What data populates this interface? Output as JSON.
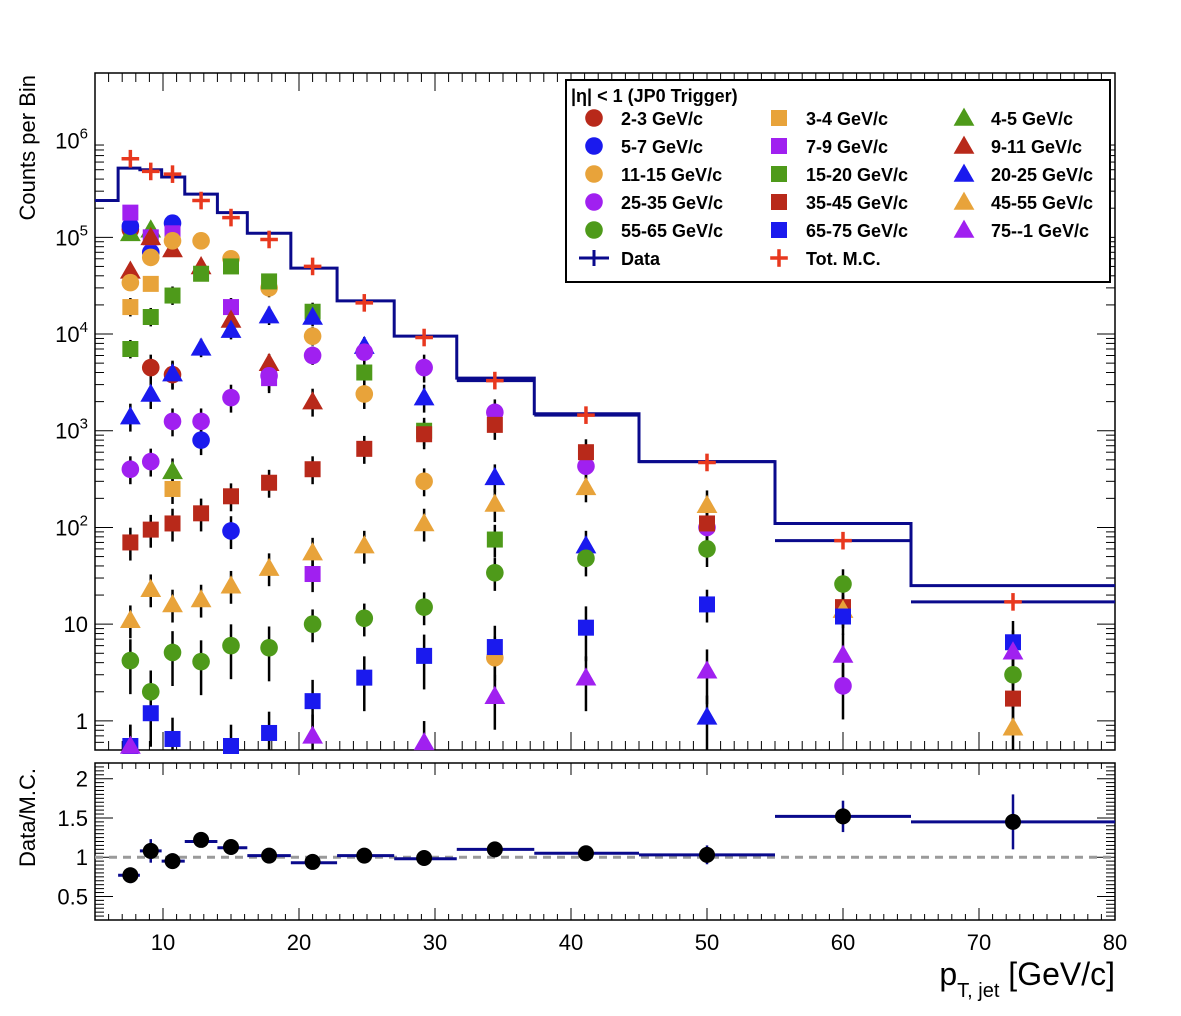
{
  "chart_data": [
    {
      "type": "scatter",
      "panel": "top",
      "ylabel": "Counts per Bin",
      "yscale": "log",
      "ylim": [
        0.5,
        5000000
      ],
      "xlim": [
        5,
        80
      ],
      "y_tick_labels": [
        {
          "value": 1,
          "label": "1"
        },
        {
          "value": 10,
          "label": "10"
        },
        {
          "value": 100,
          "label": "10",
          "exp": "2"
        },
        {
          "value": 1000,
          "label": "10",
          "exp": "3"
        },
        {
          "value": 10000,
          "label": "10",
          "exp": "4"
        },
        {
          "value": 100000,
          "label": "10",
          "exp": "5"
        },
        {
          "value": 1000000,
          "label": "10",
          "exp": "6"
        }
      ],
      "legend": {
        "header": "|η| < 1 (JP0 Trigger)",
        "placement": "top-right"
      },
      "bin_edges": [
        5,
        6.7,
        8.3,
        9.9,
        11.6,
        14,
        16.2,
        19.4,
        22.8,
        27,
        31.6,
        37.3,
        45,
        55,
        65,
        80
      ],
      "data_hist": {
        "name": "Data",
        "color": "#0a0a8c",
        "values": [
          240000,
          520000,
          500000,
          420000,
          280000,
          180000,
          110000,
          48000,
          22000,
          9500,
          3500,
          1500,
          480,
          110,
          25
        ]
      },
      "mc_hist_values": [
        null,
        null,
        null,
        null,
        null,
        null,
        null,
        null,
        null,
        null,
        3300,
        1450,
        480,
        73,
        17
      ],
      "total_mc": {
        "name": "Tot. M.C.",
        "color": "#e8381e",
        "points": [
          [
            7.6,
            650000
          ],
          [
            9.1,
            480000
          ],
          [
            10.7,
            450000
          ],
          [
            12.8,
            240000
          ],
          [
            15.0,
            160000
          ],
          [
            17.8,
            95000
          ],
          [
            21.0,
            50000
          ],
          [
            24.8,
            21000
          ],
          [
            29.2,
            9200
          ],
          [
            34.4,
            3300
          ],
          [
            41.1,
            1450
          ],
          [
            50.0,
            470
          ],
          [
            60.0,
            73
          ],
          [
            72.5,
            17
          ]
        ]
      },
      "series": [
        {
          "name": "2-3 GeV/c",
          "marker": "circle",
          "color": "#b8291a",
          "points": [
            [
              7.6,
              120000
            ],
            [
              9.1,
              4500
            ],
            [
              10.7,
              3800
            ]
          ]
        },
        {
          "name": "3-4 GeV/c",
          "marker": "square",
          "color": "#e8a33a",
          "points": [
            [
              7.6,
              19000
            ],
            [
              9.1,
              33000
            ],
            [
              10.7,
              250
            ]
          ]
        },
        {
          "name": "4-5 GeV/c",
          "marker": "triangle",
          "color": "#4e9a1a",
          "points": [
            [
              7.6,
              110000
            ],
            [
              9.1,
              120000
            ],
            [
              10.7,
              380
            ]
          ]
        },
        {
          "name": "5-7 GeV/c",
          "marker": "circle",
          "color": "#1a1aee",
          "points": [
            [
              7.6,
              130000
            ],
            [
              9.1,
              70000
            ],
            [
              10.7,
              140000
            ],
            [
              12.8,
              800
            ],
            [
              15.0,
              92
            ]
          ]
        },
        {
          "name": "7-9 GeV/c",
          "marker": "square",
          "color": "#a020f0",
          "points": [
            [
              7.6,
              180000
            ],
            [
              9.1,
              100000
            ],
            [
              10.7,
              110000
            ],
            [
              15.0,
              19000
            ],
            [
              17.8,
              3500
            ],
            [
              21.0,
              33
            ]
          ]
        },
        {
          "name": "9-11 GeV/c",
          "marker": "triangle",
          "color": "#b8291a",
          "points": [
            [
              7.6,
              45000
            ],
            [
              9.1,
              100000
            ],
            [
              10.7,
              75000
            ],
            [
              12.8,
              50000
            ],
            [
              15.0,
              14000
            ],
            [
              17.8,
              5000
            ],
            [
              21.0,
              2000
            ]
          ]
        },
        {
          "name": "11-15 GeV/c",
          "marker": "circle",
          "color": "#e8a33a",
          "points": [
            [
              7.6,
              34000
            ],
            [
              9.1,
              62000
            ],
            [
              10.7,
              92000
            ],
            [
              12.8,
              92000
            ],
            [
              15.0,
              60000
            ],
            [
              17.8,
              30000
            ],
            [
              21.0,
              9500
            ],
            [
              24.8,
              2400
            ],
            [
              29.2,
              300
            ],
            [
              34.4,
              4.5
            ]
          ]
        },
        {
          "name": "15-20 GeV/c",
          "marker": "square",
          "color": "#4e9a1a",
          "points": [
            [
              7.6,
              7000
            ],
            [
              9.1,
              15000
            ],
            [
              10.7,
              25000
            ],
            [
              12.8,
              42000
            ],
            [
              15.0,
              50000
            ],
            [
              17.8,
              35000
            ],
            [
              21.0,
              17000
            ],
            [
              24.8,
              4000
            ],
            [
              29.2,
              1000
            ],
            [
              34.4,
              75
            ]
          ]
        },
        {
          "name": "20-25 GeV/c",
          "marker": "triangle",
          "color": "#1a1aee",
          "points": [
            [
              7.6,
              1400
            ],
            [
              9.1,
              2400
            ],
            [
              10.7,
              3900
            ],
            [
              12.8,
              7200
            ],
            [
              15.0,
              11000
            ],
            [
              17.8,
              15500
            ],
            [
              21.0,
              15000
            ],
            [
              24.8,
              7500
            ],
            [
              29.2,
              2200
            ],
            [
              34.4,
              330
            ],
            [
              41.1,
              65
            ],
            [
              50.0,
              1.1
            ]
          ]
        },
        {
          "name": "25-35 GeV/c",
          "marker": "circle",
          "color": "#a020f0",
          "points": [
            [
              7.6,
              400
            ],
            [
              9.1,
              480
            ],
            [
              10.7,
              1250
            ],
            [
              12.8,
              1250
            ],
            [
              15.0,
              2200
            ],
            [
              17.8,
              3700
            ],
            [
              21.0,
              6000
            ],
            [
              24.8,
              6500
            ],
            [
              29.2,
              4500
            ],
            [
              34.4,
              1550
            ],
            [
              41.1,
              430
            ],
            [
              50.0,
              100
            ],
            [
              60.0,
              2.3
            ]
          ]
        },
        {
          "name": "35-45 GeV/c",
          "marker": "square",
          "color": "#b8291a",
          "points": [
            [
              7.6,
              70
            ],
            [
              9.1,
              95
            ],
            [
              10.7,
              110
            ],
            [
              12.8,
              140
            ],
            [
              15.0,
              210
            ],
            [
              17.8,
              290
            ],
            [
              21.0,
              400
            ],
            [
              24.8,
              650
            ],
            [
              29.2,
              920
            ],
            [
              34.4,
              1150
            ],
            [
              41.1,
              600
            ],
            [
              50.0,
              110
            ],
            [
              60.0,
              15
            ],
            [
              72.5,
              1.7
            ]
          ]
        },
        {
          "name": "45-55 GeV/c",
          "marker": "triangle",
          "color": "#e8a33a",
          "points": [
            [
              7.6,
              11
            ],
            [
              9.1,
              23
            ],
            [
              10.7,
              16
            ],
            [
              12.8,
              18
            ],
            [
              15.0,
              25
            ],
            [
              17.8,
              38
            ],
            [
              21.0,
              55
            ],
            [
              24.8,
              65
            ],
            [
              29.2,
              110
            ],
            [
              34.4,
              175
            ],
            [
              41.1,
              260
            ],
            [
              50.0,
              170
            ],
            [
              60.0,
              14
            ],
            [
              72.5,
              0.85
            ]
          ]
        },
        {
          "name": "55-65 GeV/c",
          "marker": "circle",
          "color": "#4e9a1a",
          "points": [
            [
              7.6,
              4.2
            ],
            [
              9.1,
              2
            ],
            [
              10.7,
              5.1
            ],
            [
              12.8,
              4.1
            ],
            [
              15.0,
              6
            ],
            [
              17.8,
              5.7
            ],
            [
              21.0,
              10
            ],
            [
              24.8,
              11.5
            ],
            [
              29.2,
              15
            ],
            [
              34.4,
              34
            ],
            [
              41.1,
              48
            ],
            [
              50.0,
              60
            ],
            [
              60.0,
              26
            ],
            [
              72.5,
              3
            ]
          ]
        },
        {
          "name": "65-75 GeV/c",
          "marker": "square",
          "color": "#1a1aee",
          "points": [
            [
              7.6,
              0.55
            ],
            [
              9.1,
              1.2
            ],
            [
              10.7,
              0.65
            ],
            [
              15.0,
              0.55
            ],
            [
              17.8,
              0.75
            ],
            [
              21.0,
              1.6
            ],
            [
              24.8,
              2.8
            ],
            [
              29.2,
              4.7
            ],
            [
              34.4,
              5.8
            ],
            [
              41.1,
              9.2
            ],
            [
              50.0,
              16
            ],
            [
              60.0,
              12
            ],
            [
              72.5,
              6.5
            ]
          ]
        },
        {
          "name": "75--1 GeV/c",
          "marker": "triangle",
          "color": "#a020f0",
          "points": [
            [
              7.6,
              0.55
            ],
            [
              21.0,
              0.7
            ],
            [
              29.2,
              0.6
            ],
            [
              34.4,
              1.8
            ],
            [
              41.1,
              2.8
            ],
            [
              50.0,
              3.3
            ],
            [
              60.0,
              4.8
            ],
            [
              72.5,
              5.2
            ]
          ]
        }
      ]
    },
    {
      "type": "scatter",
      "panel": "bottom",
      "ylabel": "Data/M.C.",
      "ylim": [
        0.2,
        2.2
      ],
      "xlim": [
        5,
        80
      ],
      "xlabel_main": "p",
      "xlabel_sub": "T, jet",
      "xlabel_unit": " [GeV/c]",
      "x_ticks": [
        10,
        20,
        30,
        40,
        50,
        60,
        70,
        80
      ],
      "y_ticks": [
        {
          "value": 0.5,
          "label": "0.5"
        },
        {
          "value": 1,
          "label": "1"
        },
        {
          "value": 1.5,
          "label": "1.5"
        },
        {
          "value": 2,
          "label": "2"
        }
      ],
      "reference_line": 1,
      "hist_color": "#0a0a8c",
      "ratio_hist": [
        [
          6.7,
          8.3,
          0.77
        ],
        [
          8.3,
          9.9,
          1.08
        ],
        [
          9.9,
          11.6,
          0.95
        ],
        [
          11.6,
          14,
          1.2
        ],
        [
          14,
          16.2,
          1.12
        ],
        [
          16.2,
          19.4,
          1.02
        ],
        [
          19.4,
          22.8,
          0.93
        ],
        [
          22.8,
          27,
          1.02
        ],
        [
          27,
          31.6,
          0.98
        ],
        [
          31.6,
          37.3,
          1.1
        ],
        [
          37.3,
          45,
          1.05
        ],
        [
          45,
          55,
          1.03
        ],
        [
          55,
          65,
          1.52
        ],
        [
          65,
          80,
          1.45
        ]
      ],
      "points": [
        [
          7.6,
          0.77,
          0.1
        ],
        [
          9.1,
          1.08,
          0.15
        ],
        [
          10.7,
          0.95,
          0.1
        ],
        [
          12.8,
          1.22,
          0.07
        ],
        [
          15.0,
          1.13,
          0.05
        ],
        [
          17.8,
          1.02,
          0.04
        ],
        [
          21.0,
          0.94,
          0.04
        ],
        [
          24.8,
          1.02,
          0.04
        ],
        [
          29.2,
          0.99,
          0.04
        ],
        [
          34.4,
          1.1,
          0.04
        ],
        [
          41.1,
          1.05,
          0.05
        ],
        [
          50.0,
          1.03,
          0.12
        ],
        [
          60.0,
          1.52,
          0.2
        ],
        [
          72.5,
          1.45,
          0.35
        ]
      ]
    }
  ]
}
